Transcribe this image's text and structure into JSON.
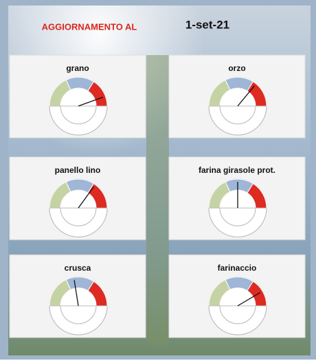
{
  "header": {
    "title": "AGGIORNAMENTO AL",
    "date": "1-set-21"
  },
  "gauge_scale": [
    0,
    100
  ],
  "bands": [
    {
      "color": "#c5d3a4",
      "to": 36
    },
    {
      "color": "#9fb6d6",
      "to": 68
    },
    {
      "color": "#dd2b22",
      "to": 100
    }
  ],
  "gauges": [
    {
      "label": "grano",
      "value": 89
    },
    {
      "label": "orzo",
      "value": 72
    },
    {
      "label": "panello lino",
      "value": 70
    },
    {
      "label": "farina girasole prot.",
      "value": 50
    },
    {
      "label": "crusca",
      "value": 45
    },
    {
      "label": "farinaccio",
      "value": 83
    }
  ]
}
